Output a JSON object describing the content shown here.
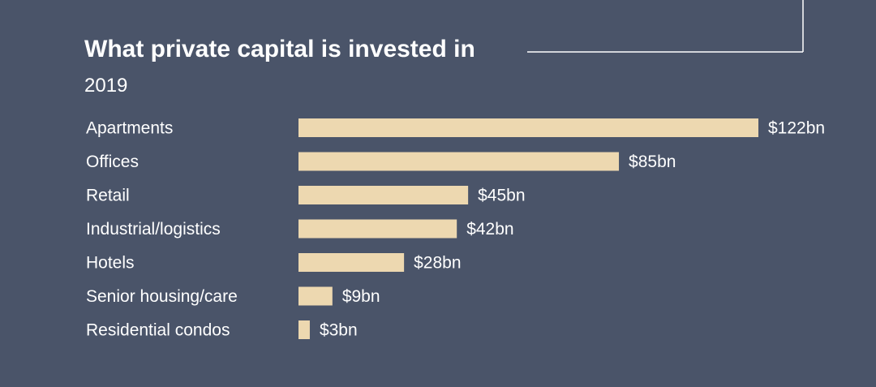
{
  "chart_data": {
    "type": "bar",
    "orientation": "horizontal",
    "title": "What private capital is invested in",
    "subtitle": "2019",
    "categories": [
      "Apartments",
      "Offices",
      "Retail",
      "Industrial/logistics",
      "Hotels",
      "Senior housing/care",
      "Residential condos"
    ],
    "values": [
      122,
      85,
      45,
      42,
      28,
      9,
      3
    ],
    "value_labels": [
      "$122bn",
      "$85bn",
      "$45bn",
      "$42bn",
      "$28bn",
      "$9bn",
      "$3bn"
    ],
    "xlim": [
      0,
      122
    ],
    "grid": false,
    "legend": "none",
    "bar_color": "#edd8b0",
    "background_color": "#4a5469"
  }
}
